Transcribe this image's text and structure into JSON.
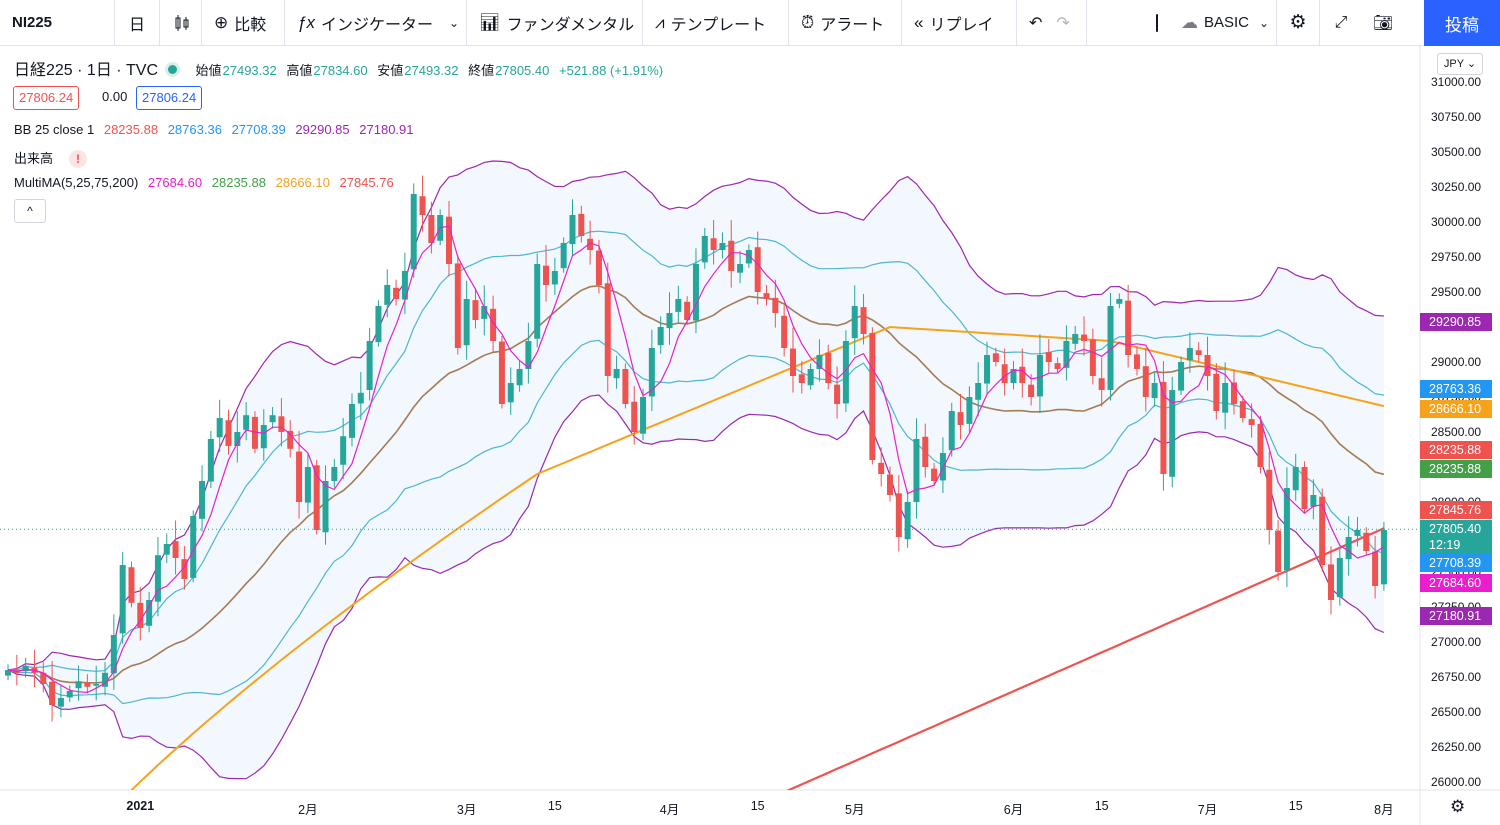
{
  "toolbar": {
    "symbol": "NI225",
    "interval": "日",
    "compare": "比較",
    "indicators": "インジケーター",
    "fundamentals": "ファンダメンタル",
    "templates": "テンプレート",
    "alert": "アラート",
    "replay": "リプレイ",
    "layout_name": "BASIC",
    "publish": "投稿"
  },
  "legend": {
    "title": "日経225 · 1日 · TVC",
    "open_label": "始値",
    "open": "27493.32",
    "high_label": "高値",
    "high": "27834.60",
    "low_label": "安値",
    "low": "27493.32",
    "close_label": "終値",
    "close": "27805.40",
    "change": "+521.88 (+1.91%)",
    "sell": "27806.24",
    "spread": "0.00",
    "buy": "27806.24",
    "bb_label": "BB 25 close 1",
    "bb_values": [
      "28235.88",
      "28763.36",
      "27708.39",
      "29290.85",
      "27180.91"
    ],
    "volume_label": "出来高",
    "volume_warning": "!",
    "ma_label": "MultiMA(5,25,75,200)",
    "ma_values": [
      "27684.60",
      "28235.88",
      "28666.10",
      "27845.76"
    ],
    "collapse": "^"
  },
  "currency": "JPY",
  "colors": {
    "up": "#26a69a",
    "down": "#ef5350",
    "ma5": "#e91ecf",
    "ma25": "#a57a55",
    "ma75": "#f7a21b",
    "ma200": "#ef5350",
    "bb_basis": "#a57a55",
    "bb_inner": "#4db6d0",
    "bb_outer": "#9c27b0"
  },
  "price_tags": [
    {
      "label": "29290.85",
      "color": "#9c27b0"
    },
    {
      "label": "28763.36",
      "color": "#2196f3"
    },
    {
      "label": "28666.10",
      "color": "#f7a21b"
    },
    {
      "label": "28235.88",
      "color": "#ef5350"
    },
    {
      "label": "28235.88",
      "color": "#43a047"
    },
    {
      "label": "27845.76",
      "color": "#ef5350"
    },
    {
      "label": "27708.39",
      "color": "#2196f3"
    },
    {
      "label": "27684.60",
      "color": "#e91ecf"
    },
    {
      "label": "27180.91",
      "color": "#9c27b0"
    }
  ],
  "now_tag": {
    "price": "27805.40",
    "time": "12:19",
    "color": "#26a69a"
  },
  "chart_data": {
    "type": "candlestick",
    "symbol": "NI225",
    "interval": "1D",
    "y_range": [
      25900,
      31100
    ],
    "y_ticks": [
      "31000.00",
      "30750.00",
      "30500.00",
      "30250.00",
      "30000.00",
      "29750.00",
      "29500.00",
      "29250.00",
      "29000.00",
      "28750.00",
      "28500.00",
      "28250.00",
      "28000.00",
      "27750.00",
      "27500.00",
      "27250.00",
      "27000.00",
      "26750.00",
      "26500.00",
      "26250.00",
      "26000.00"
    ],
    "x_ticks": [
      {
        "index": 15,
        "label": "2021"
      },
      {
        "index": 34,
        "label": "2月"
      },
      {
        "index": 52,
        "label": "3月"
      },
      {
        "index": 62,
        "label": "15"
      },
      {
        "index": 75,
        "label": "4月"
      },
      {
        "index": 85,
        "label": "15"
      },
      {
        "index": 96,
        "label": "5月"
      },
      {
        "index": 114,
        "label": "6月"
      },
      {
        "index": 124,
        "label": "15"
      },
      {
        "index": 136,
        "label": "7月"
      },
      {
        "index": 146,
        "label": "15"
      },
      {
        "index": 156,
        "label": "8月"
      }
    ],
    "candles_close": [
      26800,
      26780,
      26830,
      26780,
      26700,
      26550,
      26600,
      26650,
      26720,
      26680,
      26700,
      26780,
      27050,
      27550,
      27280,
      27100,
      27300,
      27620,
      27700,
      27600,
      27450,
      27900,
      28150,
      28450,
      28600,
      28400,
      28500,
      28620,
      28380,
      28550,
      28620,
      28500,
      28380,
      28000,
      28250,
      27800,
      28150,
      28250,
      28470,
      28700,
      28780,
      29150,
      29400,
      29550,
      29450,
      29650,
      30200,
      30050,
      29850,
      30050,
      29700,
      29100,
      29450,
      29300,
      29400,
      29150,
      28700,
      28850,
      28950,
      29150,
      29700,
      29550,
      29650,
      29850,
      30050,
      29900,
      29800,
      29550,
      28900,
      28950,
      28700,
      28500,
      28750,
      29100,
      29250,
      29350,
      29450,
      29300,
      29700,
      29900,
      29800,
      29850,
      29650,
      29700,
      29800,
      29500,
      29450,
      29350,
      29100,
      28900,
      28850,
      28950,
      29050,
      28850,
      28700,
      29150,
      29400,
      29200,
      28300,
      28200,
      28050,
      27750,
      28000,
      28450,
      28250,
      28150,
      28350,
      28650,
      28550,
      28750,
      28850,
      29050,
      29000,
      28850,
      28950,
      28850,
      28750,
      29050,
      29000,
      28950,
      29150,
      29200,
      29150,
      28900,
      28800,
      29400,
      29450,
      29050,
      28950,
      28750,
      28850,
      28200,
      28800,
      29000,
      29100,
      29050,
      28900,
      28650,
      28850,
      28700,
      28600,
      28550,
      28250,
      27800,
      27500,
      28100,
      28250,
      27950,
      28050,
      27550,
      27300,
      27600,
      27750,
      27800,
      27650,
      27400,
      27800
    ]
  }
}
